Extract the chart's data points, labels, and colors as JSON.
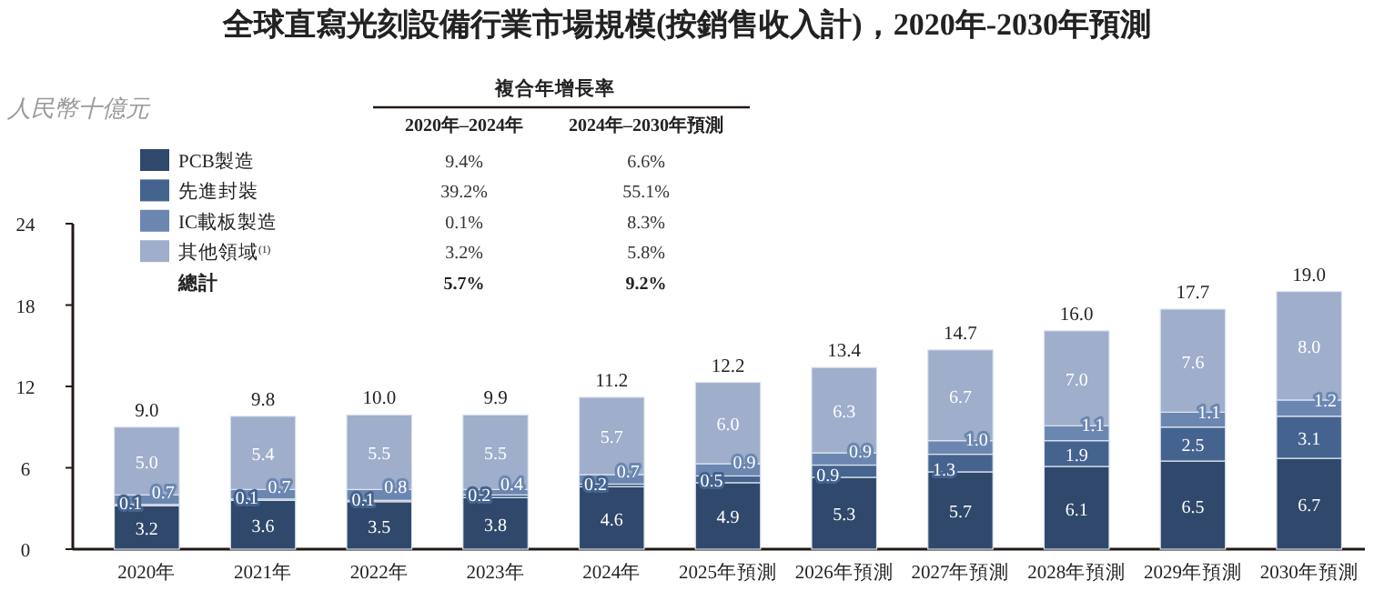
{
  "chart_data": {
    "type": "bar",
    "title": "全球直寫光刻設備行業市場規模(按銷售收入計)，2020年-2030年預測",
    "ylabel": "人民幣十億元",
    "categories": [
      "2020年",
      "2021年",
      "2022年",
      "2023年",
      "2024年",
      "2025年預測",
      "2026年預測",
      "2027年預測",
      "2028年預測",
      "2029年預測",
      "2030年預測"
    ],
    "stacked": true,
    "series": [
      {
        "name": "PCB製造",
        "color": "#2f486b",
        "values": [
          3.2,
          3.6,
          3.5,
          3.8,
          4.6,
          4.9,
          5.3,
          5.7,
          6.1,
          6.5,
          6.7
        ],
        "value_labels": [
          "3.2",
          "3.6",
          "3.5",
          "3.8",
          "4.6",
          "4.9",
          "5.3",
          "5.7",
          "6.1",
          "6.5",
          "6.7"
        ]
      },
      {
        "name": "先進封裝",
        "color": "#45638f",
        "values": [
          0.1,
          0.1,
          0.1,
          0.2,
          0.2,
          0.5,
          0.9,
          1.3,
          1.9,
          2.5,
          3.1
        ],
        "value_labels": [
          "0.1",
          "0.1",
          "0.1",
          "0.2",
          "0.2",
          "0.5",
          "0.9",
          "1.3",
          "1.9",
          "2.5",
          "3.1"
        ]
      },
      {
        "name": "IC載板製造",
        "color": "#6b87b1",
        "values": [
          0.7,
          0.7,
          0.8,
          0.4,
          0.7,
          0.9,
          0.9,
          1.0,
          1.1,
          1.1,
          1.2
        ],
        "value_labels": [
          "0.7",
          "0.7",
          "0.8",
          "0.4",
          "0.7",
          "0.9",
          "0.9",
          "1.0",
          "1.1",
          "1.1",
          "1.2"
        ]
      },
      {
        "name": "其他領域$^{(1)}$",
        "color": "#9eaecb",
        "values": [
          5.0,
          5.4,
          5.5,
          5.5,
          5.7,
          6.0,
          6.3,
          6.7,
          7.0,
          7.6,
          8.0
        ],
        "value_labels": [
          "5.0",
          "5.4",
          "5.5",
          "5.5",
          "5.7",
          "6.0",
          "6.3",
          "6.7",
          "7.0",
          "7.6",
          "8.0"
        ]
      }
    ],
    "totals": [
      "9.0",
      "9.8",
      "10.0",
      "9.9",
      "11.2",
      "12.2",
      "13.4",
      "14.7",
      "16.0",
      "17.7",
      "19.0"
    ],
    "ylim": [
      0,
      24
    ],
    "yticks": [
      0,
      6,
      12,
      18,
      24
    ],
    "grid": false,
    "legend": "top left",
    "annotations": [
      "複合年增長率",
      "2020年–2024年",
      "2024年–2030年預測",
      "9.4%",
      "6.6%",
      "39.2%",
      "55.1%",
      "0.1%",
      "8.3%",
      "3.2%",
      "5.8%",
      "總計",
      "5.7%",
      "9.2%"
    ]
  }
}
